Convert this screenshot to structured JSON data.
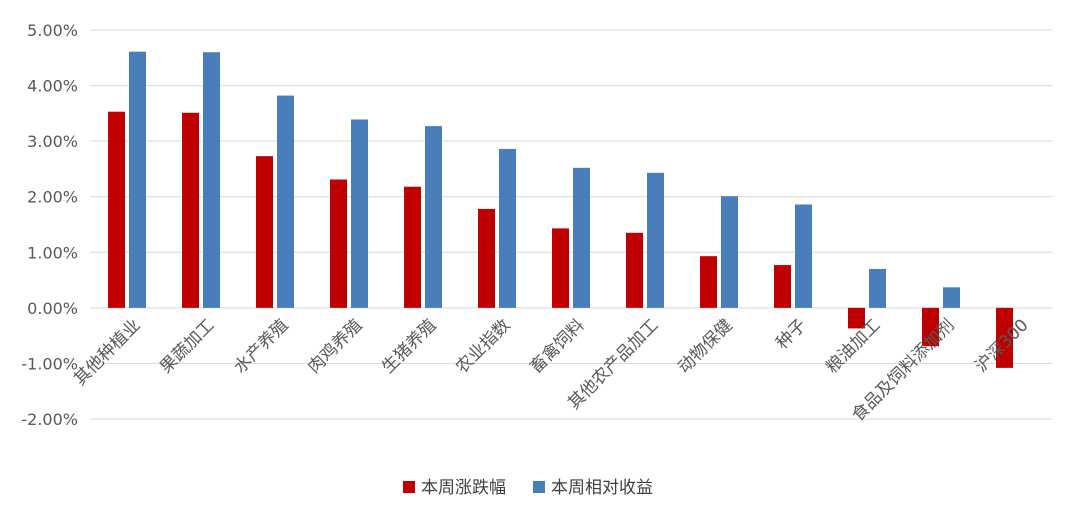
{
  "chart_data": {
    "type": "bar",
    "title": "",
    "xlabel": "",
    "ylabel": "",
    "ylim": [
      -0.02,
      0.05
    ],
    "yticks": [
      {
        "value": 0.05,
        "label": "5.00%"
      },
      {
        "value": 0.04,
        "label": "4.00%"
      },
      {
        "value": 0.03,
        "label": "3.00%"
      },
      {
        "value": 0.02,
        "label": "2.00%"
      },
      {
        "value": 0.01,
        "label": "1.00%"
      },
      {
        "value": 0.0,
        "label": "0.00%"
      },
      {
        "value": -0.01,
        "label": "-1.00%"
      },
      {
        "value": -0.02,
        "label": "-2.00%"
      }
    ],
    "grid": true,
    "legend_position": "bottom",
    "categories": [
      "其他种植业",
      "果蔬加工",
      "水产养殖",
      "肉鸡养殖",
      "生猪养殖",
      "农业指数",
      "畜禽饲料",
      "其他农产品加工",
      "动物保健",
      "种子",
      "粮油加工",
      "食品及饲料添加剂",
      "沪深300"
    ],
    "series": [
      {
        "name": "本周涨跌幅",
        "color": "#c00000",
        "values": [
          0.0353,
          0.0351,
          0.0273,
          0.0231,
          0.0218,
          0.0178,
          0.0143,
          0.0135,
          0.0093,
          0.0077,
          -0.0037,
          -0.0069,
          -0.0108
        ]
      },
      {
        "name": "本周相对收益",
        "color": "#4a7ebb",
        "values": [
          0.0461,
          0.046,
          0.0382,
          0.0339,
          0.0327,
          0.0286,
          0.0252,
          0.0243,
          0.0201,
          0.0186,
          0.007,
          0.0037,
          0.0
        ]
      }
    ]
  }
}
